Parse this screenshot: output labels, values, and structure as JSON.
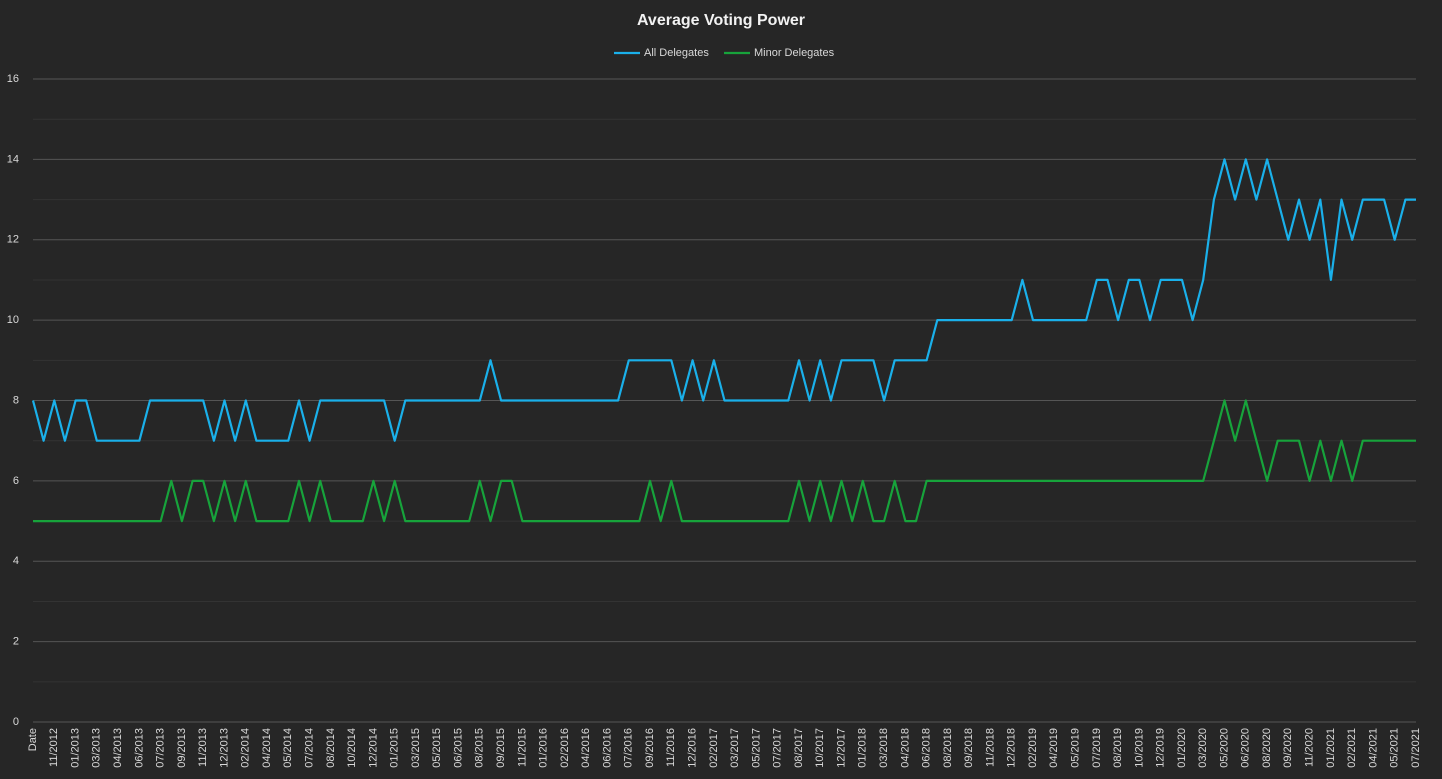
{
  "chart_data": {
    "type": "line",
    "title": "Average Voting Power",
    "categories": [
      "Date",
      null,
      "11/2012",
      null,
      "01/2013",
      null,
      "03/2013",
      null,
      "04/2013",
      null,
      "06/2013",
      null,
      "07/2013",
      null,
      "09/2013",
      null,
      "11/2013",
      null,
      "12/2013",
      null,
      "02/2014",
      null,
      "04/2014",
      null,
      "05/2014",
      null,
      "07/2014",
      null,
      "08/2014",
      null,
      "10/2014",
      null,
      "12/2014",
      null,
      "01/2015",
      null,
      "03/2015",
      null,
      "05/2015",
      null,
      "06/2015",
      null,
      "08/2015",
      null,
      "09/2015",
      null,
      "11/2015",
      null,
      "01/2016",
      null,
      "02/2016",
      null,
      "04/2016",
      null,
      "06/2016",
      null,
      "07/2016",
      null,
      "09/2016",
      null,
      "11/2016",
      null,
      "12/2016",
      null,
      "02/2017",
      null,
      "03/2017",
      null,
      "05/2017",
      null,
      "07/2017",
      null,
      "08/2017",
      null,
      "10/2017",
      null,
      "12/2017",
      null,
      "01/2018",
      null,
      "03/2018",
      null,
      "04/2018",
      null,
      "06/2018",
      null,
      "08/2018",
      null,
      "09/2018",
      null,
      "11/2018",
      null,
      "12/2018",
      null,
      "02/2019",
      null,
      "04/2019",
      null,
      "05/2019",
      null,
      "07/2019",
      null,
      "08/2019",
      null,
      "10/2019",
      null,
      "12/2019",
      null,
      "01/2020",
      null,
      "03/2020",
      null,
      "05/2020",
      null,
      "06/2020",
      null,
      "08/2020",
      null,
      "09/2020",
      null,
      "11/2020",
      null,
      "01/2021",
      null,
      "02/2021",
      null,
      "04/2021",
      null,
      "05/2021",
      null,
      "07/2021"
    ],
    "series": [
      {
        "name": "All Delegates",
        "color": "#1ab0ea",
        "values": [
          8,
          7,
          8,
          7,
          8,
          8,
          7,
          7,
          7,
          7,
          7,
          8,
          8,
          8,
          8,
          8,
          8,
          7,
          8,
          7,
          8,
          7,
          7,
          7,
          7,
          8,
          7,
          8,
          8,
          8,
          8,
          8,
          8,
          8,
          7,
          8,
          8,
          8,
          8,
          8,
          8,
          8,
          8,
          9,
          8,
          8,
          8,
          8,
          8,
          8,
          8,
          8,
          8,
          8,
          8,
          8,
          9,
          9,
          9,
          9,
          9,
          8,
          9,
          8,
          9,
          8,
          8,
          8,
          8,
          8,
          8,
          8,
          9,
          8,
          9,
          8,
          9,
          9,
          9,
          9,
          8,
          9,
          9,
          9,
          9,
          10,
          10,
          10,
          10,
          10,
          10,
          10,
          10,
          11,
          10,
          10,
          10,
          10,
          10,
          10,
          11,
          11,
          10,
          11,
          11,
          10,
          11,
          11,
          11,
          10,
          11,
          13,
          14,
          13,
          14,
          13,
          14,
          13,
          12,
          13,
          12,
          13,
          11,
          13,
          12,
          13,
          13,
          13,
          12,
          13,
          13
        ]
      },
      {
        "name": "Minor Delegates",
        "color": "#17a33b",
        "values": [
          5,
          5,
          5,
          5,
          5,
          5,
          5,
          5,
          5,
          5,
          5,
          5,
          5,
          6,
          5,
          6,
          6,
          5,
          6,
          5,
          6,
          5,
          5,
          5,
          5,
          6,
          5,
          6,
          5,
          5,
          5,
          5,
          6,
          5,
          6,
          5,
          5,
          5,
          5,
          5,
          5,
          5,
          6,
          5,
          6,
          6,
          5,
          5,
          5,
          5,
          5,
          5,
          5,
          5,
          5,
          5,
          5,
          5,
          6,
          5,
          6,
          5,
          5,
          5,
          5,
          5,
          5,
          5,
          5,
          5,
          5,
          5,
          6,
          5,
          6,
          5,
          6,
          5,
          6,
          5,
          5,
          6,
          5,
          5,
          6,
          6,
          6,
          6,
          6,
          6,
          6,
          6,
          6,
          6,
          6,
          6,
          6,
          6,
          6,
          6,
          6,
          6,
          6,
          6,
          6,
          6,
          6,
          6,
          6,
          6,
          6,
          7,
          8,
          7,
          8,
          7,
          6,
          7,
          7,
          7,
          6,
          7,
          6,
          7,
          6,
          7,
          7,
          7,
          7,
          7,
          7
        ]
      }
    ],
    "ylim": [
      0,
      16
    ],
    "yticks": [
      0,
      2,
      4,
      6,
      8,
      10,
      12,
      14,
      16
    ],
    "minor_yticks": [
      1,
      3,
      5,
      7,
      9,
      11,
      13,
      15
    ],
    "grid": true,
    "legend": "top"
  }
}
